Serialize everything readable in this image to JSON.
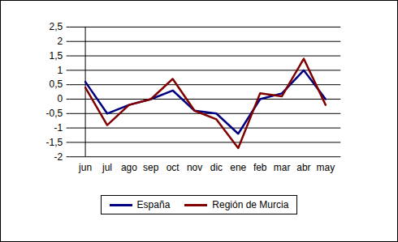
{
  "chart_data": {
    "type": "line",
    "categories": [
      "jun",
      "jul",
      "ago",
      "sep",
      "oct",
      "nov",
      "dic",
      "ene",
      "feb",
      "mar",
      "abr",
      "may"
    ],
    "series": [
      {
        "name": "España",
        "color": "#000080",
        "values": [
          0.6,
          -0.5,
          -0.2,
          0.0,
          0.3,
          -0.4,
          -0.5,
          -1.2,
          0.0,
          0.2,
          1.0,
          0.0
        ]
      },
      {
        "name": "Región de Murcia",
        "color": "#800000",
        "values": [
          0.4,
          -0.9,
          -0.2,
          0.0,
          0.7,
          -0.4,
          -0.7,
          -1.7,
          0.2,
          0.1,
          1.4,
          -0.2
        ]
      }
    ],
    "ylim": [
      -2,
      2.5
    ],
    "yticks": [
      -2,
      {
        "value": -1.5,
        "label": "-1,5"
      },
      -1,
      {
        "value": -0.5,
        "label": "-0,5"
      },
      0,
      {
        "value": 0.5,
        "label": "0,5"
      },
      1,
      {
        "value": 1.5,
        "label": "1,5"
      },
      2,
      {
        "value": 2.5,
        "label": "2,5"
      }
    ],
    "grid": true,
    "legend": "bottom"
  }
}
